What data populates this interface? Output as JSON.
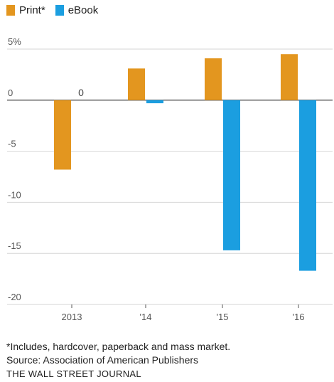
{
  "chart_data": {
    "type": "bar",
    "categories": [
      "2013",
      "'14",
      "'15",
      "'16"
    ],
    "series": [
      {
        "name": "Print*",
        "color": "#e3961f",
        "values": [
          -6.8,
          3.1,
          4.1,
          4.5
        ]
      },
      {
        "name": "eBook",
        "color": "#1b9ee0",
        "values": [
          0,
          -0.3,
          -14.7,
          -16.7
        ]
      }
    ],
    "y_ticks": [
      5,
      0,
      -5,
      -10,
      -15,
      -20
    ],
    "y_tick_labels": [
      "5%",
      "0",
      "-5",
      "-10",
      "-15",
      "-20"
    ],
    "ylim": [
      -20,
      5
    ],
    "annotations": [
      {
        "series": "eBook",
        "category": "2013",
        "text": "0"
      }
    ],
    "grid": true,
    "legend_position": "top-left"
  },
  "notes": {
    "footnote": "*Includes, hardcover, paperback and mass market.",
    "source": "Source: Association of American Publishers",
    "brand": "THE WALL STREET JOURNAL"
  }
}
